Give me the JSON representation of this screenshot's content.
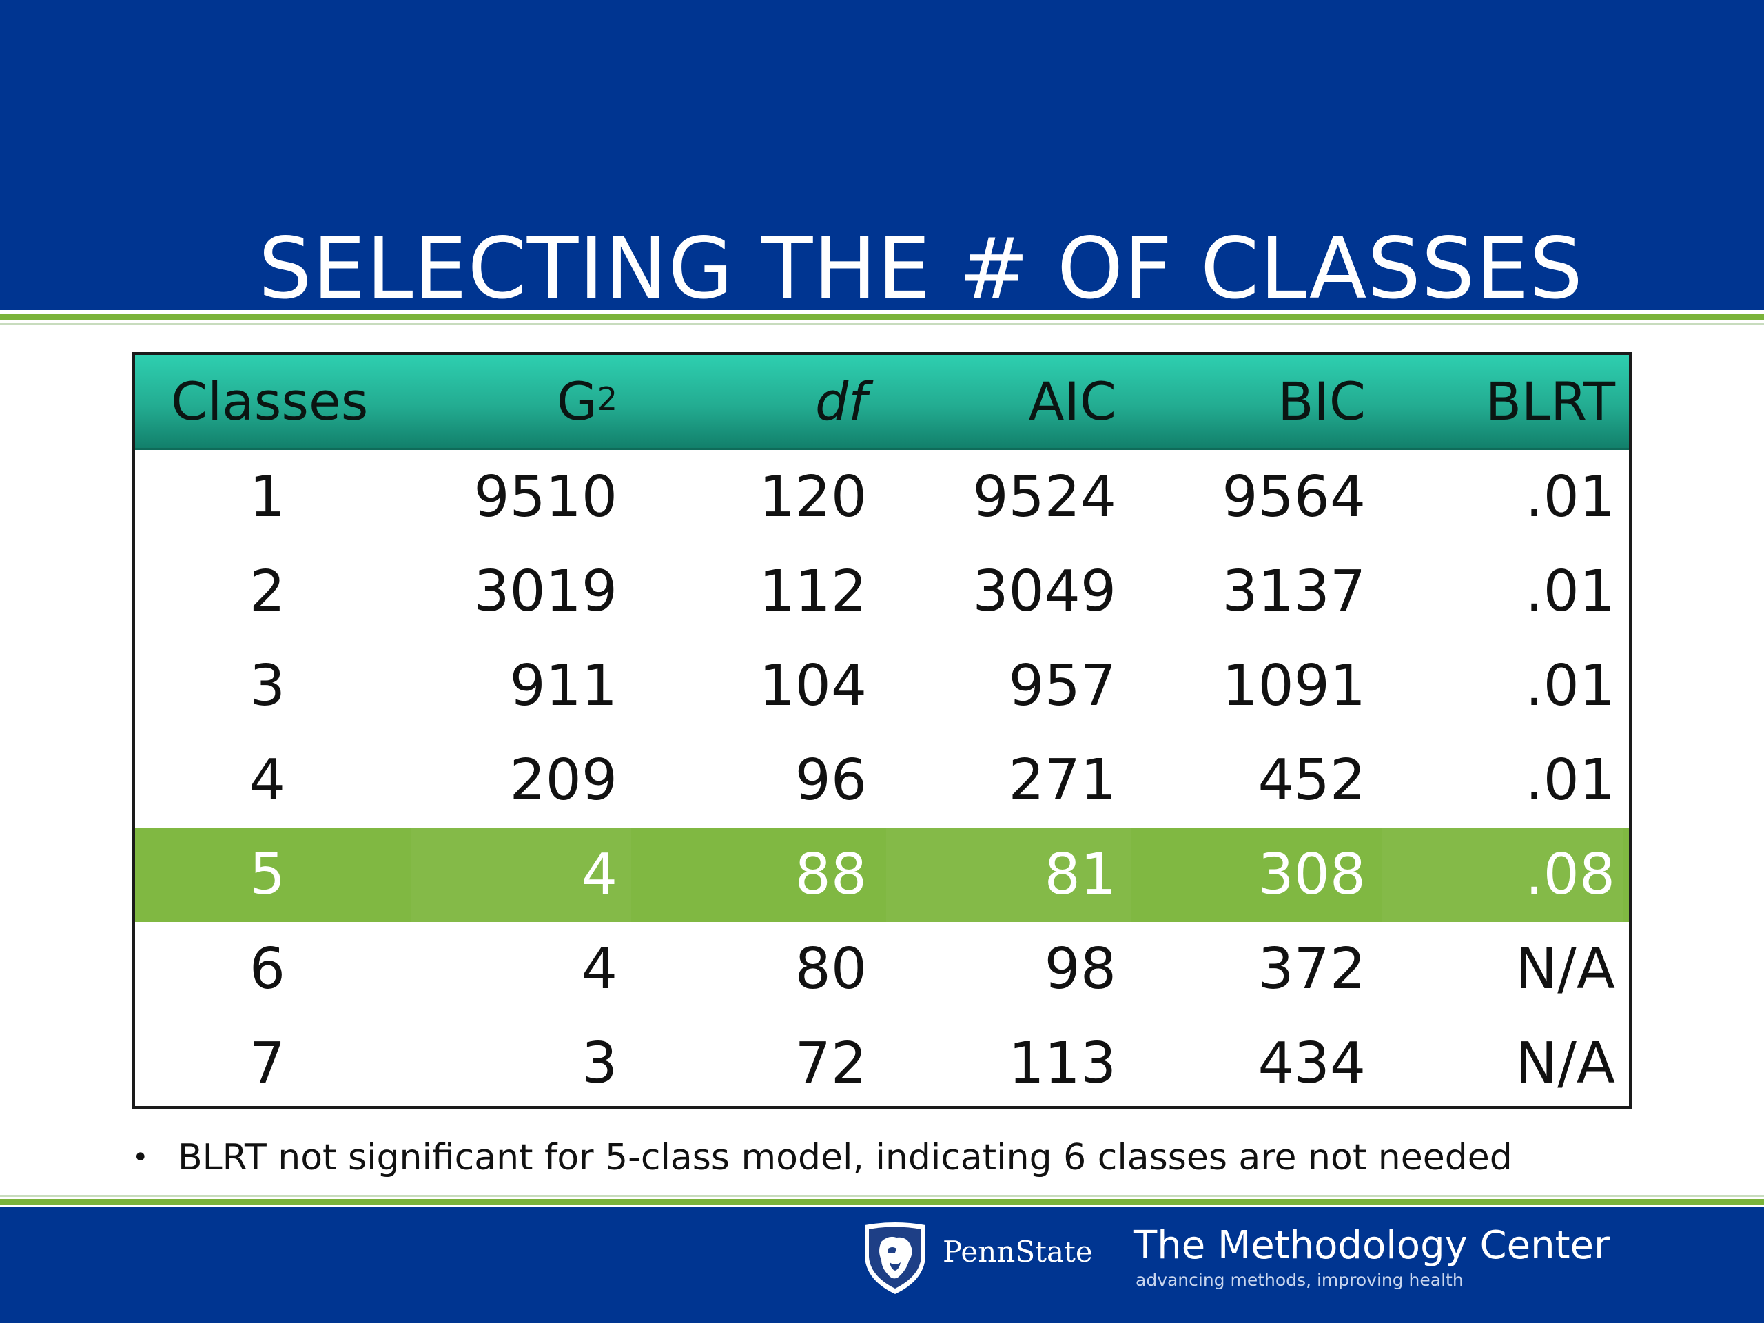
{
  "slide": {
    "title": "SELECTING THE # OF CLASSES"
  },
  "table": {
    "headers": {
      "classes": "Classes",
      "g2_base": "G",
      "g2_sup": "2",
      "df": "df",
      "aic": "AIC",
      "bic": "BIC",
      "blrt": "BLRT"
    },
    "rows": [
      {
        "classes": "1",
        "g2": "9510",
        "df": "120",
        "aic": "9524",
        "bic": "9564",
        "blrt": ".01"
      },
      {
        "classes": "2",
        "g2": "3019",
        "df": "112",
        "aic": "3049",
        "bic": "3137",
        "blrt": ".01"
      },
      {
        "classes": "3",
        "g2": "911",
        "df": "104",
        "aic": "957",
        "bic": "1091",
        "blrt": ".01"
      },
      {
        "classes": "4",
        "g2": "209",
        "df": "96",
        "aic": "271",
        "bic": "452",
        "blrt": ".01"
      },
      {
        "classes": "5",
        "g2": "4",
        "df": "88",
        "aic": "81",
        "bic": "308",
        "blrt": ".08"
      },
      {
        "classes": "6",
        "g2": "4",
        "df": "80",
        "aic": "98",
        "bic": "372",
        "blrt": "N/A"
      },
      {
        "classes": "7",
        "g2": "3",
        "df": "72",
        "aic": "113",
        "bic": "434",
        "blrt": "N/A"
      }
    ],
    "highlighted_row_classes": "5"
  },
  "note": {
    "bullet": "•",
    "text": "BLRT not significant for 5-class model, indicating 6 classes are not needed"
  },
  "footer": {
    "university": "PennState",
    "center_name": "The Methodology Center",
    "tagline": "advancing methods, improving health"
  },
  "colors": {
    "banner_blue": "#003591",
    "accent_green": "#7ab33a",
    "header_teal": "#23ac91",
    "highlight_green": "#80b842"
  },
  "icons": {
    "logo": "penn-state-nittany-lion-shield-icon"
  }
}
